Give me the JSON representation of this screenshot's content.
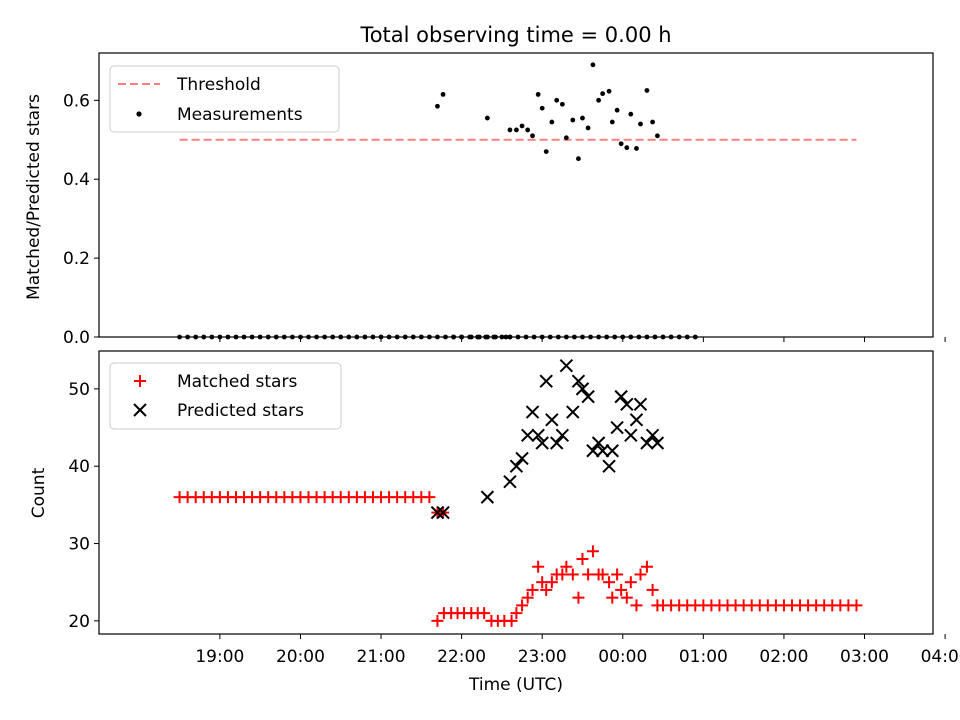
{
  "chart_data": [
    {
      "type": "scatter",
      "title": "Total observing time = 0.00 h",
      "ylabel": "Matched/Predicted stars",
      "xlabel": "",
      "ylim": [
        0,
        0.72
      ],
      "yticks": [
        "0.0",
        "0.2",
        "0.4",
        "0.6"
      ],
      "ytick_values": [
        0,
        0.2,
        0.4,
        0.6
      ],
      "threshold": 0.5,
      "threshold_color": "#ff7f7f",
      "legend": {
        "threshold": "Threshold",
        "measurements": "Measurements",
        "placement": "upper-left"
      },
      "zero_times": [
        -4.5,
        -4.4,
        -4.3,
        -4.2,
        -4.1,
        -4.0,
        -3.9,
        -3.8,
        -3.7,
        -3.6,
        -3.5,
        -3.4,
        -3.3,
        -3.2,
        -3.1,
        -3.0,
        -2.9,
        -2.8,
        -2.7,
        -2.6,
        -2.5,
        -2.4,
        -2.3,
        -2.2,
        -2.1,
        -2.0,
        -1.9,
        -1.8,
        -1.7,
        -1.6,
        -1.5,
        -1.4,
        -1.3,
        -1.2,
        -1.1,
        -1.0,
        -0.9,
        -0.8,
        -0.7,
        -0.6,
        -0.5,
        -0.4,
        -0.3,
        -1.1,
        -1.0,
        -0.88,
        -0.78,
        -0.68,
        -0.58,
        -0.45,
        -0.4,
        -0.2,
        -0.1,
        0.0,
        0.1,
        0.2,
        0.3,
        0.4,
        0.5,
        0.6,
        0.7,
        0.8,
        0.9,
        1.0,
        1.1,
        1.2,
        1.3,
        1.4,
        1.5,
        1.6,
        1.7,
        1.8,
        1.9
      ],
      "measurements": [
        [
          -1.3,
          0.585
        ],
        [
          -1.23,
          0.615
        ],
        [
          -0.68,
          0.555
        ],
        [
          -0.4,
          0.525
        ],
        [
          -0.32,
          0.525
        ],
        [
          -0.25,
          0.535
        ],
        [
          -0.18,
          0.525
        ],
        [
          -0.12,
          0.51
        ],
        [
          -0.05,
          0.615
        ],
        [
          0.0,
          0.58
        ],
        [
          0.05,
          0.47
        ],
        [
          0.12,
          0.545
        ],
        [
          0.18,
          0.6
        ],
        [
          0.25,
          0.59
        ],
        [
          0.3,
          0.505
        ],
        [
          0.38,
          0.55
        ],
        [
          0.45,
          0.452
        ],
        [
          0.5,
          0.555
        ],
        [
          0.57,
          0.53
        ],
        [
          0.63,
          0.69
        ],
        [
          0.7,
          0.6
        ],
        [
          0.75,
          0.617
        ],
        [
          0.83,
          0.623
        ],
        [
          0.87,
          0.545
        ],
        [
          0.93,
          0.575
        ],
        [
          0.98,
          0.49
        ],
        [
          1.05,
          0.48
        ],
        [
          1.1,
          0.565
        ],
        [
          1.17,
          0.478
        ],
        [
          1.22,
          0.54
        ],
        [
          1.3,
          0.625
        ],
        [
          1.37,
          0.545
        ],
        [
          1.43,
          0.51
        ]
      ]
    },
    {
      "type": "scatter",
      "title": "",
      "ylabel": "Count",
      "xlabel": "Time (UTC)",
      "ylim": [
        18.3,
        54.9
      ],
      "yticks": [
        "20",
        "30",
        "40",
        "50"
      ],
      "ytick_values": [
        20,
        30,
        40,
        50
      ],
      "legend": {
        "matched": "Matched stars",
        "predicted": "Predicted stars",
        "placement": "upper-left"
      },
      "matched_color": "#ff0000",
      "predicted_color": "#000000",
      "matched": [
        [
          -4.5,
          36
        ],
        [
          -4.4,
          36
        ],
        [
          -4.3,
          36
        ],
        [
          -4.2,
          36
        ],
        [
          -4.1,
          36
        ],
        [
          -4.0,
          36
        ],
        [
          -3.9,
          36
        ],
        [
          -3.8,
          36
        ],
        [
          -3.7,
          36
        ],
        [
          -3.6,
          36
        ],
        [
          -3.5,
          36
        ],
        [
          -3.4,
          36
        ],
        [
          -3.3,
          36
        ],
        [
          -3.2,
          36
        ],
        [
          -3.1,
          36
        ],
        [
          -3.0,
          36
        ],
        [
          -2.9,
          36
        ],
        [
          -2.8,
          36
        ],
        [
          -2.7,
          36
        ],
        [
          -2.6,
          36
        ],
        [
          -2.5,
          36
        ],
        [
          -2.4,
          36
        ],
        [
          -2.3,
          36
        ],
        [
          -2.2,
          36
        ],
        [
          -2.1,
          36
        ],
        [
          -2.0,
          36
        ],
        [
          -1.9,
          36
        ],
        [
          -1.8,
          36
        ],
        [
          -1.7,
          36
        ],
        [
          -1.6,
          36
        ],
        [
          -1.5,
          36
        ],
        [
          -1.4,
          36
        ],
        [
          -1.3,
          34
        ],
        [
          -1.23,
          34
        ],
        [
          -1.3,
          20
        ],
        [
          -1.22,
          21
        ],
        [
          -1.13,
          21
        ],
        [
          -1.05,
          21
        ],
        [
          -0.97,
          21
        ],
        [
          -0.88,
          21
        ],
        [
          -0.8,
          21
        ],
        [
          -0.72,
          21
        ],
        [
          -0.63,
          20
        ],
        [
          -0.55,
          20
        ],
        [
          -0.47,
          20
        ],
        [
          -0.38,
          20
        ],
        [
          -0.32,
          21
        ],
        [
          -0.25,
          22
        ],
        [
          -0.18,
          23
        ],
        [
          -0.12,
          24
        ],
        [
          -0.05,
          27
        ],
        [
          0.0,
          25
        ],
        [
          0.05,
          24
        ],
        [
          0.12,
          25
        ],
        [
          0.18,
          26
        ],
        [
          0.25,
          26
        ],
        [
          0.3,
          27
        ],
        [
          0.38,
          26
        ],
        [
          0.45,
          23
        ],
        [
          0.5,
          28
        ],
        [
          0.57,
          26
        ],
        [
          0.63,
          29
        ],
        [
          0.7,
          26
        ],
        [
          0.75,
          26
        ],
        [
          0.83,
          25
        ],
        [
          0.87,
          23
        ],
        [
          0.93,
          26
        ],
        [
          0.98,
          24
        ],
        [
          1.05,
          23
        ],
        [
          1.1,
          25
        ],
        [
          1.17,
          22
        ],
        [
          1.22,
          26
        ],
        [
          1.3,
          27
        ],
        [
          1.37,
          24
        ],
        [
          1.43,
          22
        ],
        [
          1.5,
          22
        ],
        [
          1.6,
          22
        ],
        [
          1.7,
          22
        ],
        [
          1.8,
          22
        ],
        [
          1.9,
          22
        ],
        [
          2.0,
          22
        ],
        [
          2.1,
          22
        ],
        [
          2.2,
          22
        ],
        [
          2.3,
          22
        ],
        [
          2.4,
          22
        ],
        [
          2.5,
          22
        ],
        [
          2.6,
          22
        ],
        [
          2.7,
          22
        ],
        [
          2.8,
          22
        ],
        [
          2.9,
          22
        ],
        [
          3.0,
          22
        ],
        [
          3.1,
          22
        ],
        [
          3.2,
          22
        ],
        [
          3.3,
          22
        ],
        [
          3.4,
          22
        ],
        [
          3.5,
          22
        ],
        [
          3.6,
          22
        ],
        [
          3.7,
          22
        ],
        [
          3.8,
          22
        ],
        [
          3.9,
          22
        ]
      ],
      "predicted": [
        [
          -1.3,
          34
        ],
        [
          -1.23,
          34
        ],
        [
          -0.68,
          36
        ],
        [
          -0.4,
          38
        ],
        [
          -0.32,
          40
        ],
        [
          -0.25,
          41
        ],
        [
          -0.18,
          44
        ],
        [
          -0.12,
          47
        ],
        [
          -0.05,
          44
        ],
        [
          0.0,
          43
        ],
        [
          0.05,
          51
        ],
        [
          0.12,
          46
        ],
        [
          0.18,
          43
        ],
        [
          0.25,
          44
        ],
        [
          0.3,
          53
        ],
        [
          0.38,
          47
        ],
        [
          0.45,
          51
        ],
        [
          0.5,
          50
        ],
        [
          0.57,
          49
        ],
        [
          0.63,
          42
        ],
        [
          0.7,
          43
        ],
        [
          0.75,
          42
        ],
        [
          0.83,
          40
        ],
        [
          0.87,
          42
        ],
        [
          0.93,
          45
        ],
        [
          0.98,
          49
        ],
        [
          1.05,
          48
        ],
        [
          1.1,
          44
        ],
        [
          1.17,
          46
        ],
        [
          1.22,
          48
        ],
        [
          1.3,
          43
        ],
        [
          1.37,
          44
        ],
        [
          1.43,
          43
        ]
      ],
      "x_ticks": [
        "19:00",
        "20:00",
        "21:00",
        "22:00",
        "23:00",
        "00:00",
        "01:00",
        "02:00",
        "03:00",
        "04:00"
      ],
      "x_tick_values": [
        -4,
        -3,
        -2,
        -1,
        0,
        1,
        2,
        3,
        4,
        5
      ],
      "xlim": [
        -5.5,
        4.85
      ]
    }
  ]
}
